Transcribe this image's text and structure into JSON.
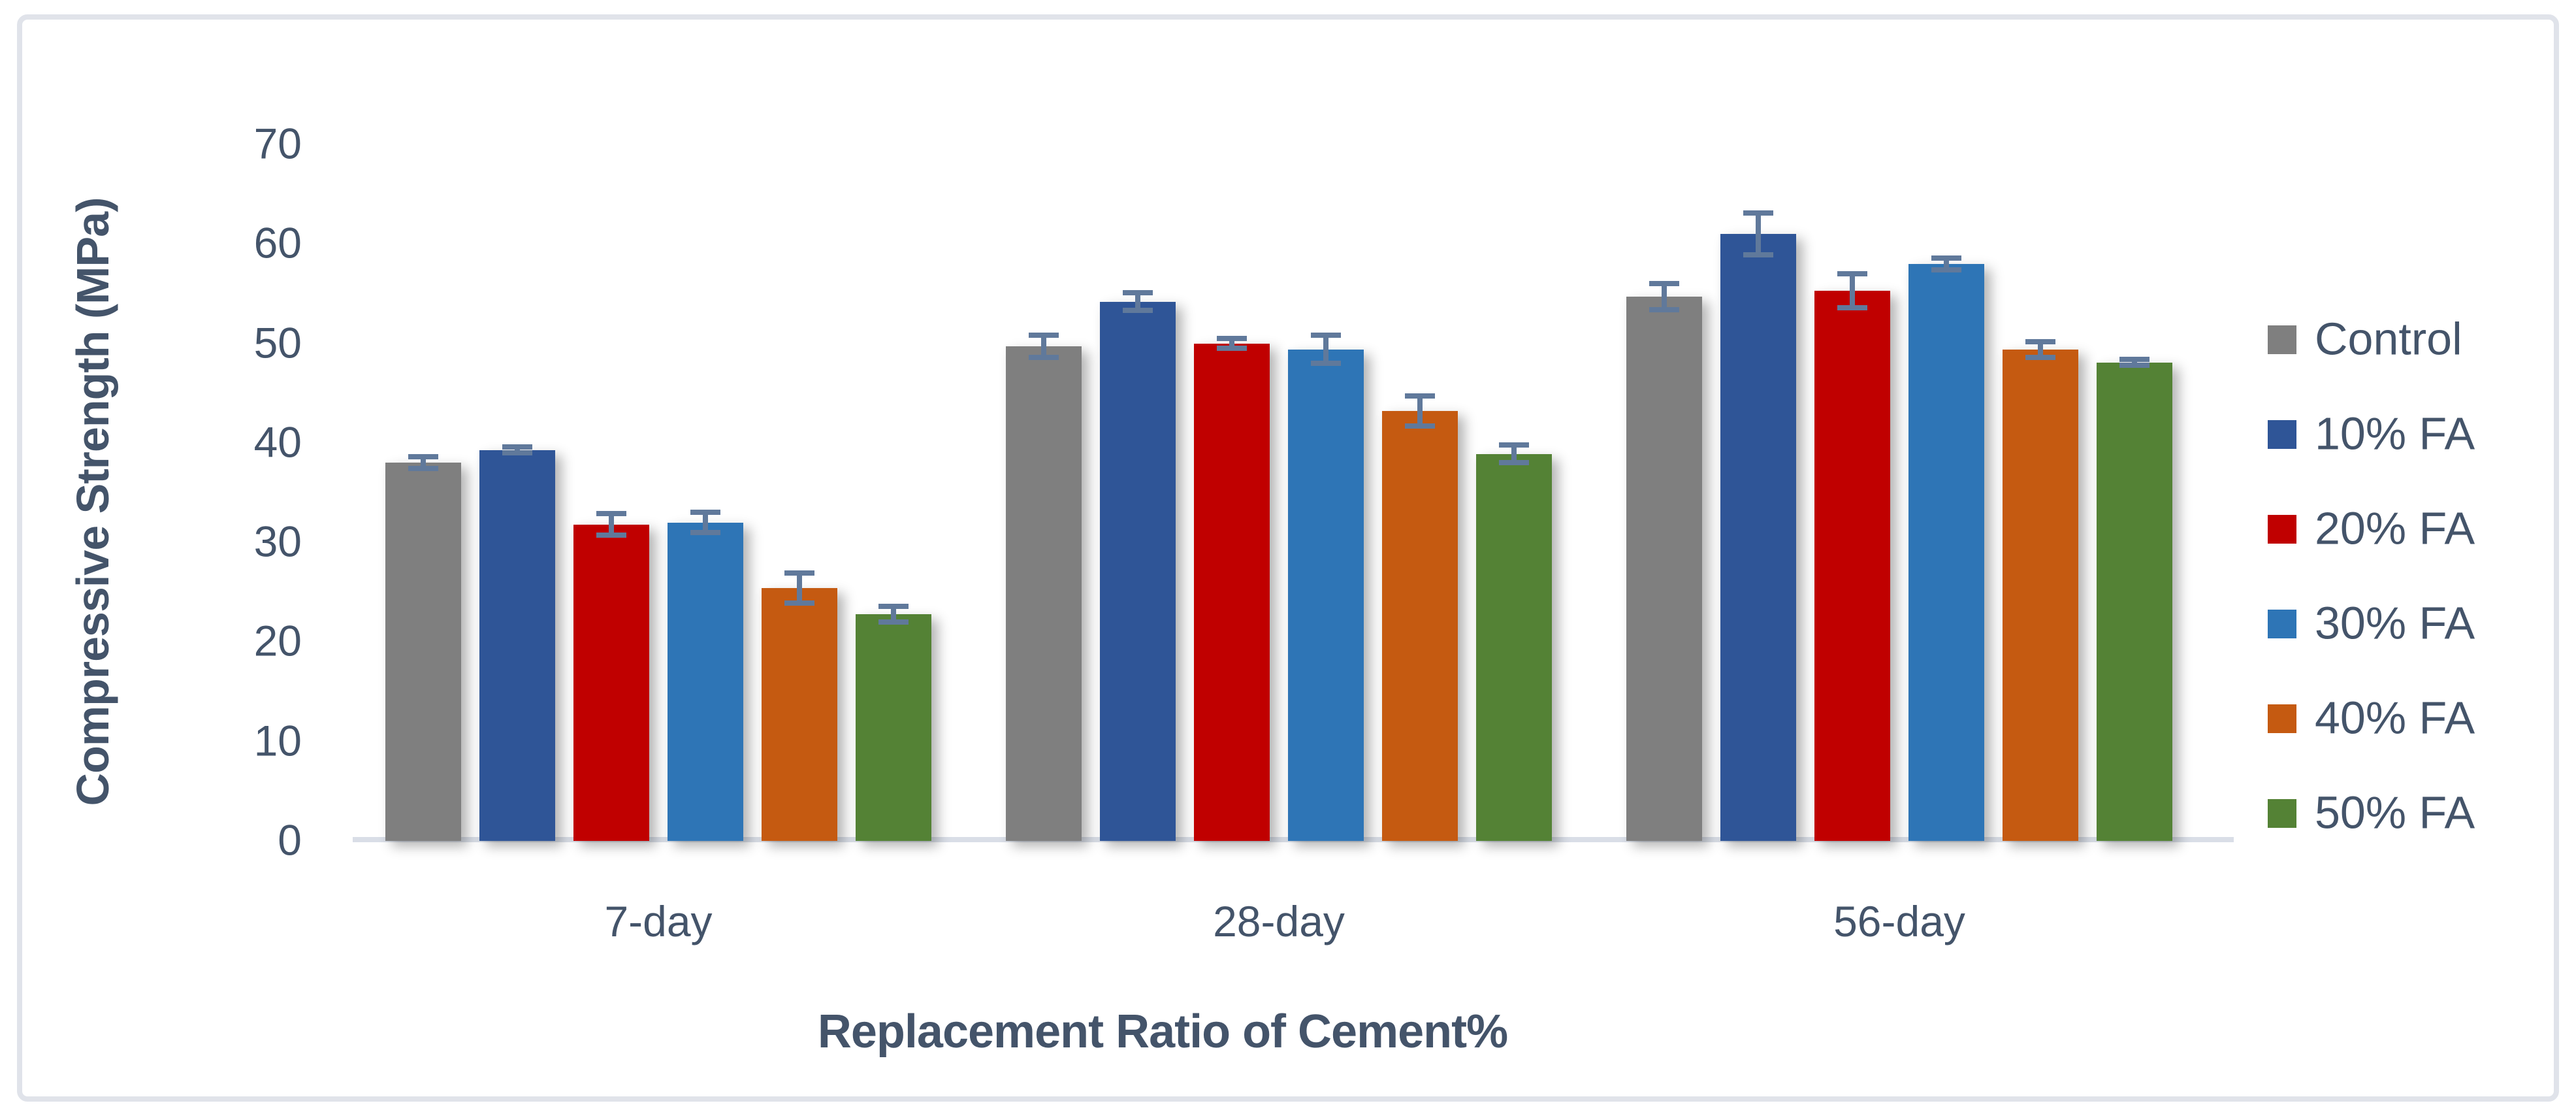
{
  "figure": {
    "frame_border_color": "#E0E3EA",
    "background_color": "#FFFFFF"
  },
  "chart_data": {
    "type": "bar",
    "title": "",
    "xlabel": "Replacement Ratio of Cement%",
    "ylabel": "Compressive Strength (MPa)",
    "categories": [
      "7-day",
      "28-day",
      "56-day"
    ],
    "series": [
      {
        "name": "Control",
        "color": "#7F7F7F",
        "values": [
          38.0,
          49.7,
          54.7
        ],
        "errors": [
          0.6,
          1.1,
          1.3
        ]
      },
      {
        "name": "10% FA",
        "color": "#2F5597",
        "values": [
          39.3,
          54.2,
          61.0
        ],
        "errors": [
          0.3,
          0.9,
          2.1
        ]
      },
      {
        "name": "20% FA",
        "color": "#C00000",
        "values": [
          31.8,
          50.0,
          55.3
        ],
        "errors": [
          1.1,
          0.5,
          1.7
        ]
      },
      {
        "name": "30% FA",
        "color": "#2E75B6",
        "values": [
          32.0,
          49.4,
          58.0
        ],
        "errors": [
          1.0,
          1.4,
          0.6
        ]
      },
      {
        "name": "40% FA",
        "color": "#C55A11",
        "values": [
          25.4,
          43.2,
          49.4
        ],
        "errors": [
          1.5,
          1.5,
          0.8
        ]
      },
      {
        "name": "50% FA",
        "color": "#548235",
        "values": [
          22.8,
          38.9,
          48.1
        ],
        "errors": [
          0.8,
          0.9,
          0.3
        ]
      }
    ],
    "ylim": [
      0,
      70
    ],
    "yticks": [
      0,
      10,
      20,
      30,
      40,
      50,
      60,
      70
    ],
    "grid": false,
    "legend_position": "right",
    "colors": {
      "axis_text": "#44546A",
      "error_bar": "#60799B",
      "baseline": "#D9DEE7"
    }
  }
}
